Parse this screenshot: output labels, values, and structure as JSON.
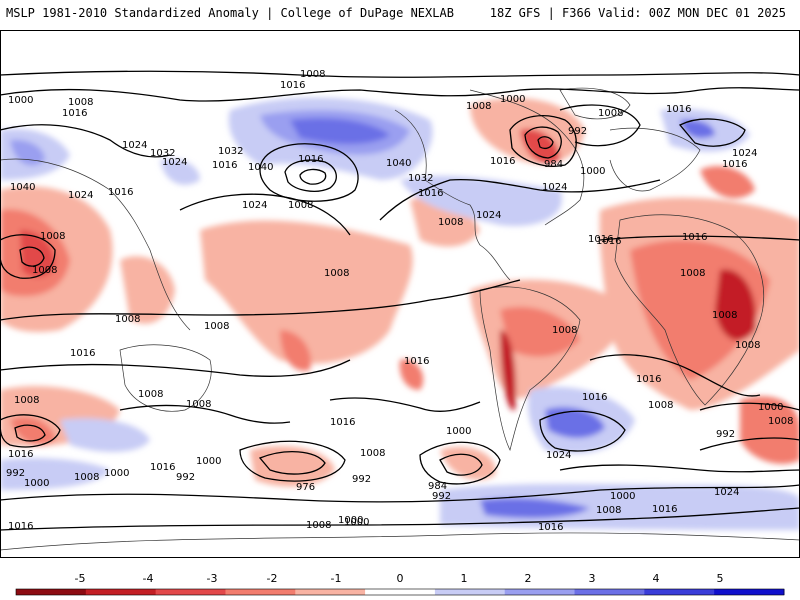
{
  "header": {
    "title": "MSLP 1981-2010 Standardized Anomaly | College of DuPage NEXLAB",
    "run": "18Z GFS | F366 Valid: 00Z MON DEC 01 2025"
  },
  "colorbar": {
    "ticks": [
      "-5",
      "-4",
      "-3",
      "-2",
      "-1",
      "0",
      "1",
      "2",
      "3",
      "4",
      "5"
    ],
    "colors": [
      "#8c0b12",
      "#c31f25",
      "#e2484a",
      "#f27d6e",
      "#f8b3a3",
      "#ffffff",
      "#c8ccf5",
      "#9a9ff0",
      "#6b6fe6",
      "#3a3dd9",
      "#1010cc"
    ]
  },
  "map": {
    "contour_labels": [
      "1008",
      "1000",
      "1016",
      "1008",
      "1024",
      "1032",
      "1024",
      "1016",
      "1040",
      "1032",
      "1016",
      "1024",
      "1008",
      "1040",
      "1016",
      "1008",
      "1024",
      "1008",
      "1008",
      "1016",
      "1032",
      "1016",
      "1040",
      "1016",
      "1024",
      "1008",
      "1000",
      "1008",
      "992",
      "984",
      "1000",
      "1016",
      "1024",
      "1016",
      "1008",
      "1024",
      "1016",
      "1008",
      "1016",
      "1008",
      "1008",
      "1008",
      "1008",
      "1016",
      "1008",
      "1008",
      "1008",
      "1008",
      "1016",
      "1016",
      "1016",
      "1008",
      "1000",
      "1008",
      "992",
      "1000",
      "1016",
      "1016",
      "1000",
      "1000",
      "1008",
      "1024",
      "992",
      "1000",
      "1008",
      "992",
      "1000",
      "984",
      "992",
      "976",
      "992",
      "1016",
      "1000",
      "1008",
      "1016",
      "1024",
      "1016",
      "1008",
      "1000",
      "1016",
      "1016"
    ]
  }
}
